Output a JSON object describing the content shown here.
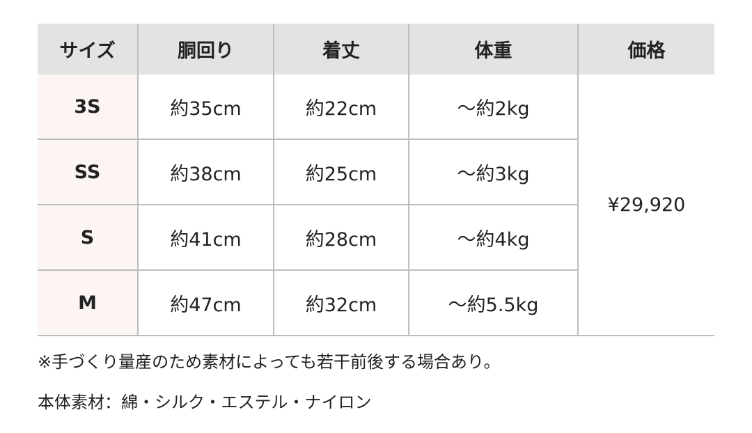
{
  "table": {
    "headers": [
      "サイズ",
      "胴回り",
      "着丈",
      "体重",
      "価格"
    ],
    "rows": [
      {
        "size": "3S",
        "waist": "約35cm",
        "length": "約22cm",
        "weight": "〜約2kg"
      },
      {
        "size": "SS",
        "waist": "約38cm",
        "length": "約25cm",
        "weight": "〜約3kg"
      },
      {
        "size": "S",
        "waist": "約41cm",
        "length": "約28cm",
        "weight": "〜約4kg"
      },
      {
        "size": "M",
        "waist": "約47cm",
        "length": "約32cm",
        "weight": "〜約5.5kg"
      }
    ],
    "price": "¥29,920"
  },
  "notes": {
    "handmade": "※手づくり量産のため素材によっても若干前後する場合あり。",
    "material": "本体素材：綿・シルク・エステル・ナイロン"
  }
}
